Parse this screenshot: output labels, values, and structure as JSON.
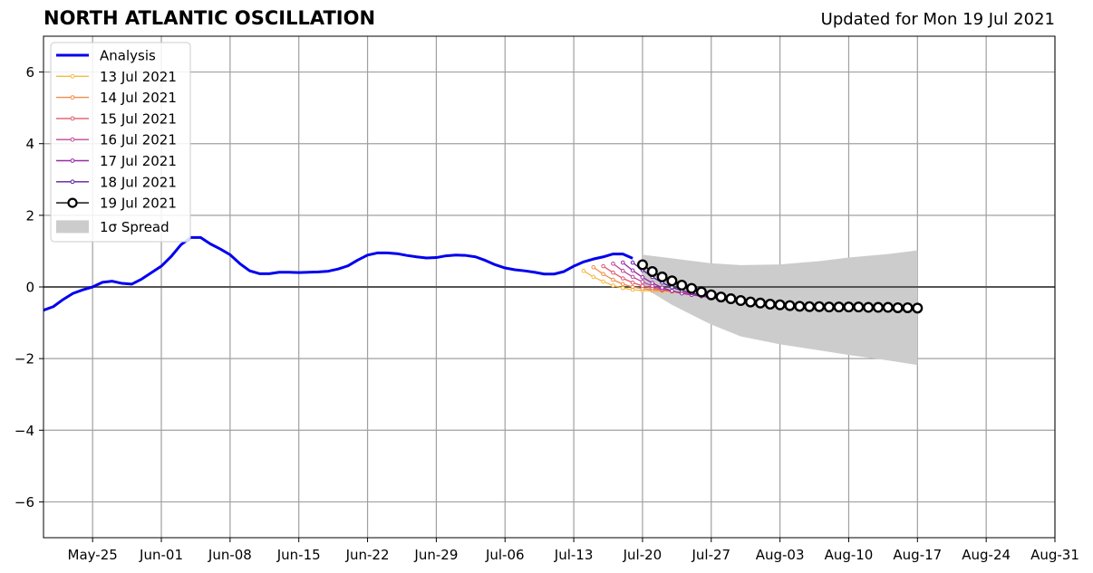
{
  "title": "NORTH ATLANTIC OSCILLATION",
  "updated": "Updated for Mon 19 Jul 2021",
  "chart_data": {
    "type": "line",
    "title": "NORTH ATLANTIC OSCILLATION",
    "xlabel": "",
    "ylabel": "",
    "xlim": [
      "2021-05-20",
      "2021-08-31"
    ],
    "ylim": [
      -7,
      7
    ],
    "grid": true,
    "legend_position": "top-left",
    "yticks": [
      -6,
      -4,
      -2,
      0,
      2,
      4,
      6
    ],
    "ytick_labels": [
      "−6",
      "−4",
      "−2",
      "0",
      "2",
      "4",
      "6"
    ],
    "xticks": [
      "2021-05-25",
      "2021-06-01",
      "2021-06-08",
      "2021-06-15",
      "2021-06-22",
      "2021-06-29",
      "2021-07-06",
      "2021-07-13",
      "2021-07-20",
      "2021-07-27",
      "2021-08-03",
      "2021-08-10",
      "2021-08-17",
      "2021-08-24",
      "2021-08-31"
    ],
    "xtick_labels": [
      "May-25",
      "Jun-01",
      "Jun-08",
      "Jun-15",
      "Jun-22",
      "Jun-29",
      "Jul-06",
      "Jul-13",
      "Jul-20",
      "Jul-27",
      "Aug-03",
      "Aug-10",
      "Aug-17",
      "Aug-24",
      "Aug-31"
    ],
    "analysis": {
      "name": "Analysis",
      "color": "#0000ee",
      "start": "2021-05-20",
      "values": [
        -0.65,
        -0.55,
        -0.35,
        -0.18,
        -0.08,
        0.0,
        0.13,
        0.16,
        0.1,
        0.08,
        0.22,
        0.4,
        0.58,
        0.85,
        1.18,
        1.38,
        1.38,
        1.2,
        1.06,
        0.9,
        0.65,
        0.45,
        0.37,
        0.37,
        0.41,
        0.41,
        0.4,
        0.41,
        0.42,
        0.44,
        0.5,
        0.59,
        0.75,
        0.89,
        0.95,
        0.95,
        0.93,
        0.88,
        0.84,
        0.81,
        0.82,
        0.87,
        0.89,
        0.88,
        0.84,
        0.74,
        0.62,
        0.53,
        0.48,
        0.45,
        0.41,
        0.36,
        0.36,
        0.43,
        0.58,
        0.7,
        0.78,
        0.84,
        0.92,
        0.92,
        0.8
      ]
    },
    "forecasts": [
      {
        "name": "13 Jul 2021",
        "color": "#f5b942",
        "start": "2021-07-14",
        "values": [
          0.45,
          0.28,
          0.15,
          0.04,
          -0.03,
          -0.08,
          -0.1,
          -0.11,
          -0.12,
          -0.14,
          -0.17,
          -0.2,
          -0.24,
          -0.28,
          -0.32,
          -0.36,
          -0.4,
          -0.43,
          -0.46,
          -0.49,
          -0.51,
          -0.52,
          -0.53,
          -0.53
        ]
      },
      {
        "name": "14 Jul 2021",
        "color": "#ee8c45",
        "start": "2021-07-15",
        "values": [
          0.55,
          0.36,
          0.2,
          0.08,
          0.0,
          -0.05,
          -0.08,
          -0.1,
          -0.12,
          -0.15,
          -0.18,
          -0.22,
          -0.26,
          -0.3,
          -0.34,
          -0.38,
          -0.41,
          -0.44,
          -0.47,
          -0.5,
          -0.52,
          -0.53,
          -0.54
        ]
      },
      {
        "name": "15 Jul 2021",
        "color": "#de5b6f",
        "start": "2021-07-16",
        "values": [
          0.58,
          0.4,
          0.24,
          0.12,
          0.03,
          -0.03,
          -0.08,
          -0.12,
          -0.16,
          -0.19,
          -0.23,
          -0.27,
          -0.31,
          -0.35,
          -0.38,
          -0.41,
          -0.44,
          -0.47,
          -0.5,
          -0.52,
          -0.53,
          -0.54
        ]
      },
      {
        "name": "16 Jul 2021",
        "color": "#c2449a",
        "start": "2021-07-17",
        "values": [
          0.65,
          0.45,
          0.28,
          0.14,
          0.03,
          -0.06,
          -0.12,
          -0.17,
          -0.21,
          -0.25,
          -0.29,
          -0.33,
          -0.36,
          -0.39,
          -0.42,
          -0.45,
          -0.48,
          -0.5,
          -0.52,
          -0.53,
          -0.54
        ]
      },
      {
        "name": "17 Jul 2021",
        "color": "#9a2aa8",
        "start": "2021-07-18",
        "values": [
          0.68,
          0.46,
          0.27,
          0.11,
          -0.02,
          -0.11,
          -0.18,
          -0.22,
          -0.26,
          -0.3,
          -0.34,
          -0.37,
          -0.4,
          -0.43,
          -0.46,
          -0.48,
          -0.5,
          -0.52,
          -0.53,
          -0.54
        ]
      },
      {
        "name": "18 Jul 2021",
        "color": "#5a1fa0",
        "start": "2021-07-19",
        "values": [
          0.68,
          0.47,
          0.28,
          0.12,
          -0.01,
          -0.1,
          -0.17,
          -0.23,
          -0.28,
          -0.32,
          -0.36,
          -0.4,
          -0.43,
          -0.46,
          -0.48,
          -0.5,
          -0.52,
          -0.53,
          -0.54
        ]
      },
      {
        "name": "19 Jul 2021",
        "color": "#000000",
        "start": "2021-07-20",
        "values": [
          0.62,
          0.43,
          0.28,
          0.17,
          0.05,
          -0.04,
          -0.14,
          -0.22,
          -0.28,
          -0.33,
          -0.38,
          -0.42,
          -0.45,
          -0.48,
          -0.5,
          -0.52,
          -0.54,
          -0.55,
          -0.55,
          -0.56,
          -0.56,
          -0.56,
          -0.56,
          -0.57,
          -0.57,
          -0.57,
          -0.58,
          -0.58,
          -0.59
        ]
      }
    ],
    "spread": {
      "name": "1σ Spread",
      "color": "#cccccc",
      "dates": [
        "2021-07-20",
        "2021-07-23",
        "2021-07-27",
        "2021-07-30",
        "2021-08-03",
        "2021-08-07",
        "2021-08-10",
        "2021-08-14",
        "2021-08-17"
      ],
      "upper": [
        0.9,
        0.8,
        0.66,
        0.61,
        0.63,
        0.72,
        0.82,
        0.92,
        1.02
      ],
      "lower": [
        0.0,
        -0.5,
        -1.05,
        -1.38,
        -1.6,
        -1.77,
        -1.9,
        -2.05,
        -2.18
      ]
    }
  }
}
